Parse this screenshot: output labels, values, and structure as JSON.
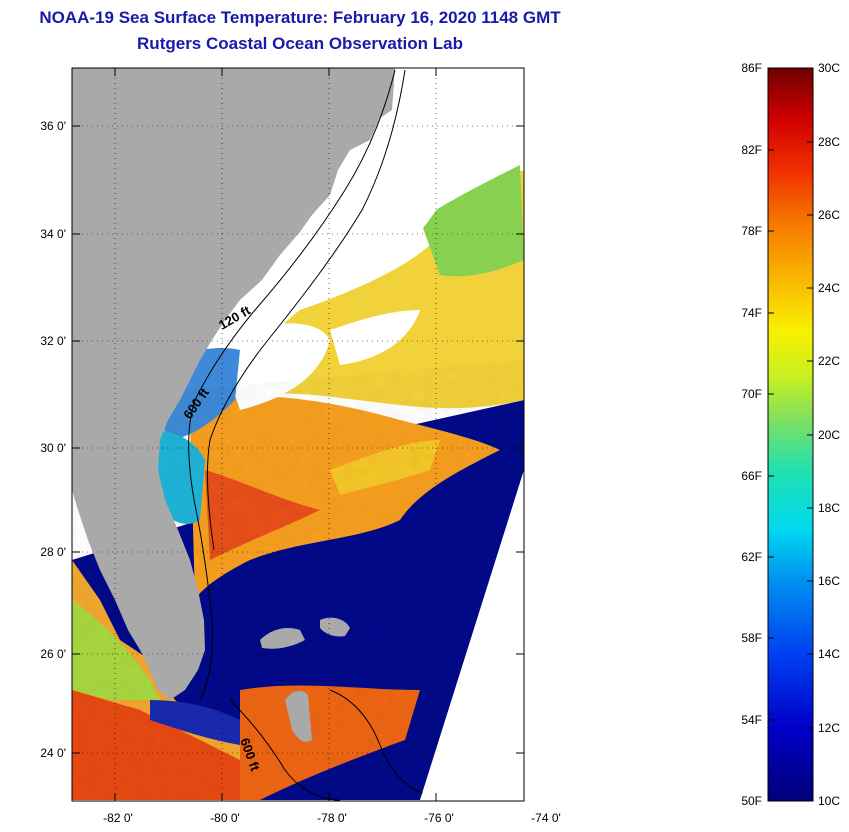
{
  "title_line1": "NOAA-19 Sea Surface Temperature:  February 16, 2020 1148 GMT",
  "title_line2": "Rutgers Coastal Ocean Observation Lab",
  "map": {
    "lat_ticks": [
      "36 0'",
      "34 0'",
      "32 0'",
      "30 0'",
      "28 0'",
      "26 0'",
      "24 0'"
    ],
    "lon_ticks": [
      "-82 0'",
      "-80 0'",
      "-78 0'",
      "-76 0'",
      "-74 0'"
    ],
    "contour_labels": [
      "120 ft",
      "600 ft",
      "600 ft"
    ],
    "colors": {
      "land": "#a9a9a9",
      "cloud": "#ffffff",
      "cold": "#000a8c",
      "warm": "#f07a10"
    }
  },
  "colorbar": {
    "fahrenheit": [
      "86F",
      "82F",
      "78F",
      "74F",
      "70F",
      "66F",
      "62F",
      "58F",
      "54F",
      "50F"
    ],
    "celsius": [
      "30C",
      "28C",
      "26C",
      "24C",
      "22C",
      "20C",
      "18C",
      "16C",
      "14C",
      "12C",
      "10C"
    ]
  }
}
